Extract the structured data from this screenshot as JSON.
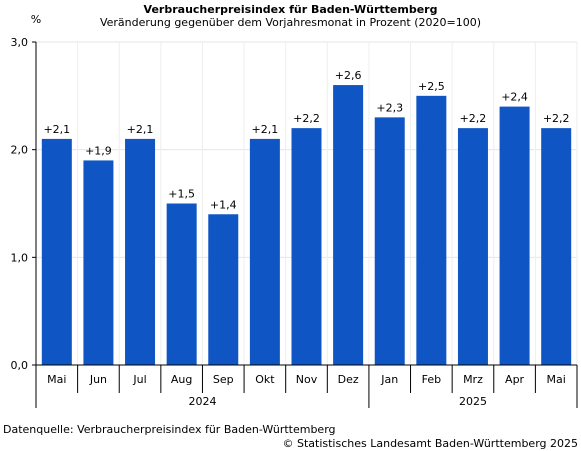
{
  "chart_data": {
    "type": "bar",
    "title": "Verbraucherpreisindex für Baden-Württemberg",
    "subtitle": "Veränderung gegenüber dem Vorjahresmonat in Prozent (2020=100)",
    "ylabel": "%",
    "ylim": [
      0,
      3
    ],
    "yticks": [
      "0,0",
      "1,0",
      "2,0",
      "3,0"
    ],
    "grid": true,
    "bar_color": "#0f55c3",
    "categories": [
      "Mai",
      "Jun",
      "Jul",
      "Aug",
      "Sep",
      "Okt",
      "Nov",
      "Dez",
      "Jan",
      "Feb",
      "Mrz",
      "Apr",
      "Mai"
    ],
    "values": [
      2.1,
      1.9,
      2.1,
      1.5,
      1.4,
      2.1,
      2.2,
      2.6,
      2.3,
      2.5,
      2.2,
      2.4,
      2.2
    ],
    "value_labels": [
      "+2,1",
      "+1,9",
      "+2,1",
      "+1,5",
      "+1,4",
      "+2,1",
      "+2,2",
      "+2,6",
      "+2,3",
      "+2,5",
      "+2,2",
      "+2,4",
      "+2,2"
    ],
    "year_groups": [
      {
        "label": "2024",
        "count": 8
      },
      {
        "label": "2025",
        "count": 5
      }
    ]
  },
  "footer": {
    "source": "Datenquelle: Verbraucherpreisindex für Baden-Württemberg",
    "copyright": "© Statistisches Landesamt Baden-Württemberg 2025"
  }
}
